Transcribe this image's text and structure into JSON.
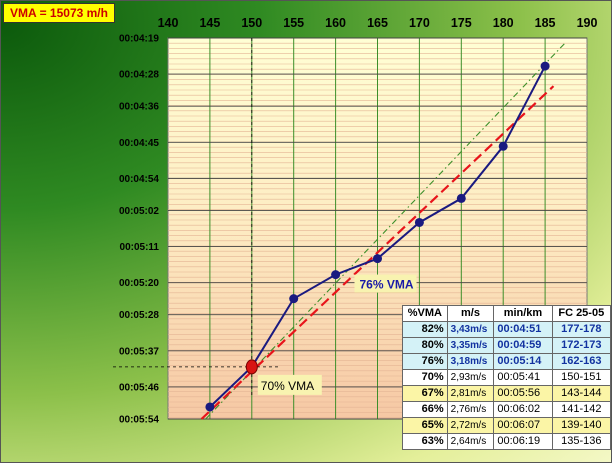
{
  "vma_label": "VMA = 15073 m/h",
  "chart_data": {
    "type": "line",
    "x_ticks": [
      140,
      145,
      150,
      155,
      160,
      165,
      170,
      175,
      180,
      185,
      190
    ],
    "xlim": [
      140,
      190
    ],
    "y_ticks": [
      "00:04:19",
      "00:04:28",
      "00:04:36",
      "00:04:45",
      "00:04:54",
      "00:05:02",
      "00:05:11",
      "00:05:20",
      "00:05:28",
      "00:05:37",
      "00:05:46",
      "00:05:54"
    ],
    "ylim": [
      "00:04:19",
      "00:05:54"
    ],
    "y_inverted": true,
    "series": [
      {
        "x": [
          145,
          150,
          155,
          160,
          165,
          170,
          175,
          180,
          185
        ],
        "y": [
          "00:05:51",
          "00:05:41",
          "00:05:24",
          "00:05:18",
          "00:05:14",
          "00:05:05",
          "00:04:59",
          "00:04:46",
          "00:04:26"
        ]
      }
    ],
    "annotations": [
      {
        "text": "76% VMA",
        "x": 165,
        "y": "00:05:14"
      },
      {
        "text": "70% VMA",
        "x": 150,
        "y": "00:05:41"
      }
    ]
  },
  "table": {
    "headers": [
      "%VMA",
      "m/s",
      "min/km",
      "FC 25-05"
    ],
    "rows": [
      {
        "pct": "82%",
        "ms": "3,43m/s",
        "mk": "00:04:51",
        "fc": "177-178",
        "bg": "#d4f2f7",
        "tc": "#1232a0",
        "bold": true
      },
      {
        "pct": "80%",
        "ms": "3,35m/s",
        "mk": "00:04:59",
        "fc": "172-173",
        "bg": "#d4f2f7",
        "tc": "#1232a0",
        "bold": true
      },
      {
        "pct": "76%",
        "ms": "3,18m/s",
        "mk": "00:05:14",
        "fc": "162-163",
        "bg": "#d4f2f7",
        "tc": "#1232a0",
        "bold": true
      },
      {
        "pct": "70%",
        "ms": "2,93m/s",
        "mk": "00:05:41",
        "fc": "150-151",
        "bg": "#ffffff",
        "tc": "#000000",
        "bold": false
      },
      {
        "pct": "67%",
        "ms": "2,81m/s",
        "mk": "00:05:56",
        "fc": "143-144",
        "bg": "#fbf5a6",
        "tc": "#000000",
        "bold": false
      },
      {
        "pct": "66%",
        "ms": "2,76m/s",
        "mk": "00:06:02",
        "fc": "141-142",
        "bg": "#ffffff",
        "tc": "#000000",
        "bold": false
      },
      {
        "pct": "65%",
        "ms": "2,72m/s",
        "mk": "00:06:07",
        "fc": "139-140",
        "bg": "#fbf5a6",
        "tc": "#000000",
        "bold": false
      },
      {
        "pct": "63%",
        "ms": "2,64m/s",
        "mk": "00:06:19",
        "fc": "135-136",
        "bg": "#ffffff",
        "tc": "#000000",
        "bold": false
      }
    ]
  },
  "colors": {
    "series": "#1a1a80",
    "trend": "#e8141b",
    "guide": "#3d8f2a",
    "highlight": "#d81313"
  }
}
